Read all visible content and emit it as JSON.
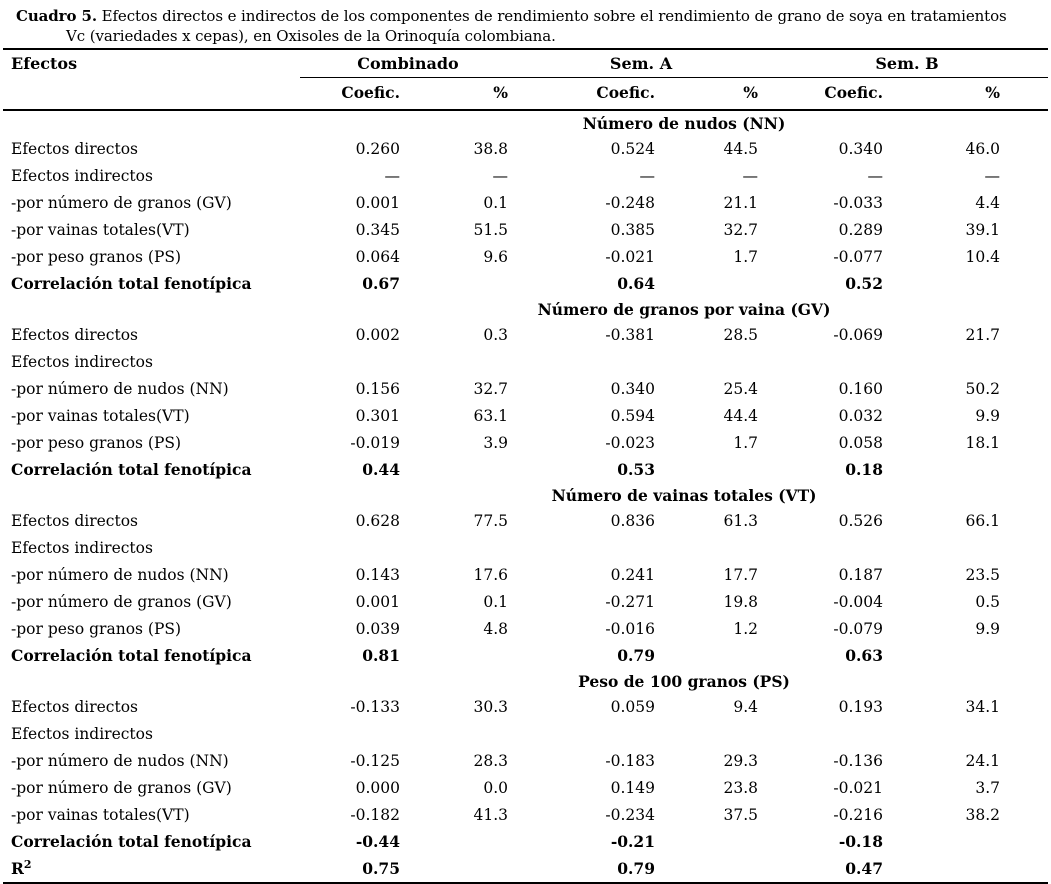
{
  "caption": {
    "label": "Cuadro 5.",
    "line1": "Efectos directos e indirectos de los componentes de rendimiento sobre el rendimiento de grano de soya en tratamientos",
    "line2": "Vc (variedades x cepas), en Oxisoles de la Orinoquía colombiana."
  },
  "columns": {
    "row_header": "Efectos",
    "groups": [
      {
        "label": "Combinado"
      },
      {
        "label": "Sem. A"
      },
      {
        "label": "Sem. B"
      }
    ],
    "subheaders": {
      "coefic": "Coefic.",
      "pct": "%"
    }
  },
  "sections": [
    {
      "header": "Número de nudos (NN)",
      "rows": [
        {
          "label": "Efectos directos",
          "values": [
            "0.260",
            "38.8",
            "0.524",
            "44.5",
            "0.340",
            "46.0"
          ],
          "bold": false
        },
        {
          "label": "Efectos indirectos",
          "values": [
            "—",
            "—",
            "—",
            "—",
            "—",
            "—"
          ],
          "bold": false
        },
        {
          "label": "-por número de granos (GV)",
          "values": [
            "0.001",
            "0.1",
            "-0.248",
            "21.1",
            "-0.033",
            "4.4"
          ],
          "bold": false
        },
        {
          "label": "-por vainas totales(VT)",
          "values": [
            "0.345",
            "51.5",
            "0.385",
            "32.7",
            "0.289",
            "39.1"
          ],
          "bold": false
        },
        {
          "label": "-por peso granos (PS)",
          "values": [
            "0.064",
            "9.6",
            "-0.021",
            "1.7",
            "-0.077",
            "10.4"
          ],
          "bold": false
        },
        {
          "label": "Correlación total fenotípica",
          "values": [
            "0.67",
            "",
            "0.64",
            "",
            "0.52",
            ""
          ],
          "bold": true
        }
      ]
    },
    {
      "header": "Número de granos por vaina (GV)",
      "rows": [
        {
          "label": "Efectos directos",
          "values": [
            "0.002",
            "0.3",
            "-0.381",
            "28.5",
            "-0.069",
            "21.7"
          ],
          "bold": false
        },
        {
          "label": "Efectos indirectos",
          "values": [
            "",
            "",
            "",
            "",
            "",
            ""
          ],
          "bold": false
        },
        {
          "label": "-por número de nudos (NN)",
          "values": [
            "0.156",
            "32.7",
            "0.340",
            "25.4",
            "0.160",
            "50.2"
          ],
          "bold": false
        },
        {
          "label": "-por vainas totales(VT)",
          "values": [
            "0.301",
            "63.1",
            "0.594",
            "44.4",
            "0.032",
            "9.9"
          ],
          "bold": false
        },
        {
          "label": "-por peso granos (PS)",
          "values": [
            "-0.019",
            "3.9",
            "-0.023",
            "1.7",
            "0.058",
            "18.1"
          ],
          "bold": false
        },
        {
          "label": "Correlación total fenotípica",
          "values": [
            "0.44",
            "",
            "0.53",
            "",
            "0.18",
            ""
          ],
          "bold": true
        }
      ]
    },
    {
      "header": "Número de vainas totales (VT)",
      "rows": [
        {
          "label": "Efectos directos",
          "values": [
            "0.628",
            "77.5",
            "0.836",
            "61.3",
            "0.526",
            "66.1"
          ],
          "bold": false
        },
        {
          "label": "Efectos indirectos",
          "values": [
            "",
            "",
            "",
            "",
            "",
            ""
          ],
          "bold": false
        },
        {
          "label": "-por número de nudos (NN)",
          "values": [
            "0.143",
            "17.6",
            "0.241",
            "17.7",
            "0.187",
            "23.5"
          ],
          "bold": false
        },
        {
          "label": "-por número de granos (GV)",
          "values": [
            "0.001",
            "0.1",
            "-0.271",
            "19.8",
            "-0.004",
            "0.5"
          ],
          "bold": false
        },
        {
          "label": "-por peso granos (PS)",
          "values": [
            "0.039",
            "4.8",
            "-0.016",
            "1.2",
            "-0.079",
            "9.9"
          ],
          "bold": false
        },
        {
          "label": "Correlación total fenotípica",
          "values": [
            "0.81",
            "",
            "0.79",
            "",
            "0.63",
            ""
          ],
          "bold": true
        }
      ]
    },
    {
      "header": "Peso de 100 granos (PS)",
      "rows": [
        {
          "label": "Efectos directos",
          "values": [
            "-0.133",
            "30.3",
            "0.059",
            "9.4",
            "0.193",
            "34.1"
          ],
          "bold": false
        },
        {
          "label": "Efectos indirectos",
          "values": [
            "",
            "",
            "",
            "",
            "",
            ""
          ],
          "bold": false
        },
        {
          "label": "-por número de nudos (NN)",
          "values": [
            "-0.125",
            "28.3",
            "-0.183",
            "29.3",
            "-0.136",
            "24.1"
          ],
          "bold": false
        },
        {
          "label": "-por número de granos (GV)",
          "values": [
            "0.000",
            "0.0",
            "0.149",
            "23.8",
            "-0.021",
            "3.7"
          ],
          "bold": false
        },
        {
          "label": "-por vainas totales(VT)",
          "values": [
            "-0.182",
            "41.3",
            "-0.234",
            "37.5",
            "-0.216",
            "38.2"
          ],
          "bold": false
        },
        {
          "label": "Correlación total fenotípica",
          "values": [
            "-0.44",
            "",
            "-0.21",
            "",
            "-0.18",
            ""
          ],
          "bold": true
        }
      ]
    }
  ],
  "footer_row": {
    "label_base": "R",
    "label_sup": "2",
    "values": [
      "0.75",
      "",
      "0.79",
      "",
      "0.47",
      ""
    ]
  },
  "colors": {
    "text": "#000000",
    "rule": "#000000",
    "background": "#ffffff"
  }
}
